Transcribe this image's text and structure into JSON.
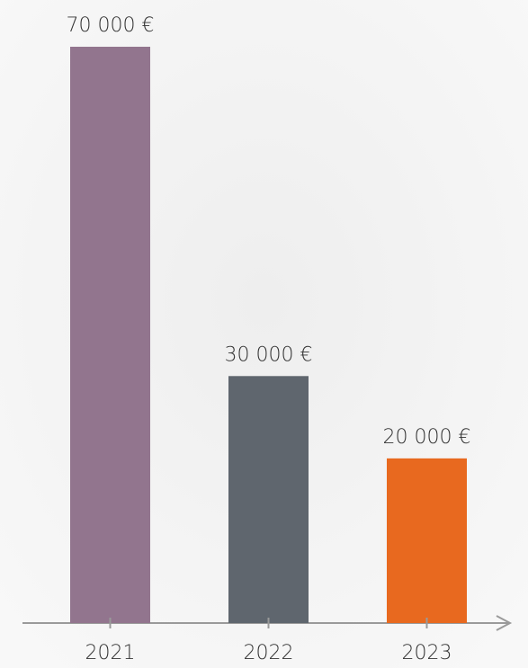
{
  "chart_data": {
    "type": "bar",
    "categories": [
      "2021",
      "2022",
      "2023"
    ],
    "values": [
      70000,
      30000,
      20000
    ],
    "value_labels": [
      "70 000 €",
      "30 000 €",
      "20 000 €"
    ],
    "colors": [
      "#92758e",
      "#5f666e",
      "#e8691f"
    ]
  }
}
